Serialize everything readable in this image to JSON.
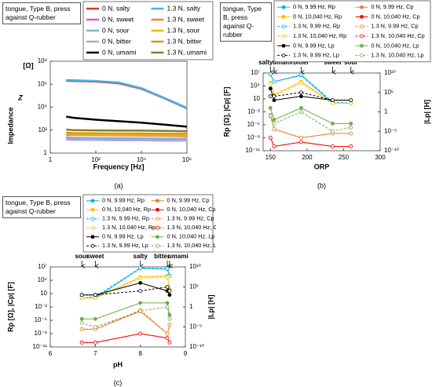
{
  "chart_data": [
    {
      "type": "line",
      "title": "tongue, Type B, press against Q-rubber",
      "caption": "(a)",
      "xlabel": "Frequency  [Hz]",
      "ylabel": "Impedance",
      "ylabel_symbol": "Z",
      "yunit": "[Ω]",
      "xlog": true,
      "ylog": true,
      "markers": false,
      "xlim": [
        1,
        1000000
      ],
      "xticks": [
        1,
        {
          "value": 100,
          "label": "10²"
        },
        {
          "value": 10000,
          "label": "10⁴"
        },
        {
          "value": 1000000,
          "label": "10⁶"
        }
      ],
      "ylim": [
        1,
        100000000
      ],
      "yticks": [
        1,
        {
          "value": 100,
          "label": "10²"
        },
        {
          "value": 10000,
          "label": "10⁴"
        },
        {
          "value": 1000000,
          "label": "10⁶"
        },
        {
          "value": 100000000,
          "label": "10⁸"
        }
      ],
      "x": [
        5,
        10,
        100,
        1000,
        10000,
        100000,
        1000000
      ],
      "series": [
        {
          "name": "0 N, salty",
          "color": "#e8312b",
          "values": [
            2000000,
            1900000,
            1700000,
            1200000,
            400000,
            60000,
            8000
          ]
        },
        {
          "name": "1.3 N, salty",
          "color": "#3fb5e5",
          "values": [
            2300000,
            2200000,
            1900000,
            1400000,
            450000,
            65000,
            8500
          ]
        },
        {
          "name": "0 N, sweet",
          "color": "#e05bb5",
          "values": [
            20,
            20,
            19,
            19,
            18,
            17,
            16
          ]
        },
        {
          "name": "1.3 N, sweet",
          "color": "#f0833a",
          "values": [
            40,
            38,
            36,
            35,
            33,
            32,
            30
          ]
        },
        {
          "name": "0 N, sour",
          "color": "#7fb3e0",
          "values": [
            25,
            22,
            20,
            20,
            19,
            18,
            18
          ]
        },
        {
          "name": "1.3 N, sour",
          "color": "#f5b800",
          "values": [
            50,
            45,
            42,
            40,
            40,
            38,
            38
          ]
        },
        {
          "name": "0 N, bitter",
          "color": "#b6a5d6",
          "values": [
            15,
            14,
            14,
            13,
            13,
            12,
            12
          ]
        },
        {
          "name": "1.3 N, bitter",
          "color": "#d49a17",
          "values": [
            60,
            55,
            52,
            50,
            50,
            48,
            48
          ]
        },
        {
          "name": "0 N, umami",
          "color": "#000000",
          "values": [
            1500,
            1200,
            800,
            600,
            450,
            300,
            200
          ]
        },
        {
          "name": "1.3 N, umami",
          "color": "#8b7a2b",
          "values": [
            110,
            100,
            95,
            90,
            90,
            85,
            80
          ]
        }
      ]
    },
    {
      "type": "line",
      "title": "tongue, Type B, press against Q-rubber",
      "caption": "(b)",
      "xlabel": "ORP",
      "ylabel": "Rp [Ω],  |Cp|  [F]",
      "y2label": "|Lp|  [H]",
      "xlog": false,
      "ylog": true,
      "y2log": true,
      "markers": true,
      "xlim": [
        140,
        300
      ],
      "xticks": [
        150,
        200,
        250,
        300
      ],
      "ylim": [
        1e-11,
        10000000
      ],
      "yticks": [
        {
          "value": 1e-11,
          "label": "10⁻¹¹"
        },
        {
          "value": 1e-08,
          "label": "10⁻⁸"
        },
        {
          "value": 1e-05,
          "label": "10⁻⁵"
        },
        {
          "value": 0.01,
          "label": "10⁻²"
        },
        10,
        {
          "value": 10000,
          "label": "10⁴"
        },
        {
          "value": 10000000,
          "label": "10⁷"
        }
      ],
      "y2lim": [
        1e-10,
        10000000000
      ],
      "y2ticks": [
        {
          "value": 1e-10,
          "label": "10⁻¹⁰"
        },
        {
          "value": 1e-05,
          "label": "10⁻⁵"
        },
        1,
        {
          "value": 100000,
          "label": "10⁵"
        },
        {
          "value": 10000000000,
          "label": "10¹⁰"
        }
      ],
      "annotations": [
        {
          "text": "salty",
          "x": 150
        },
        {
          "text": "umami",
          "x": 155
        },
        {
          "text": "bitter",
          "x": 192
        },
        {
          "text": "sweet",
          "x": 235
        },
        {
          "text": "sour",
          "x": 260
        }
      ],
      "x": [
        150,
        155,
        192,
        235,
        260
      ],
      "series": [
        {
          "name": "0 N, 9.99 Hz, Rp",
          "color": "#00b0f0",
          "dash": false,
          "values": [
            5000000,
            100000,
            3000000,
            1,
            1
          ]
        },
        {
          "name": "0 N, 9.99 Hz, Cp",
          "color": "#ed7d31",
          "dash": false,
          "values": [
            0.001,
            1e-06,
            1e-08,
            1e-07,
            1e-07
          ]
        },
        {
          "name": "0 N, 10,040 Hz, Rp",
          "color": "#ffc000",
          "dash": false,
          "values": [
            50000,
            100,
            100000,
            1,
            1
          ]
        },
        {
          "name": "0 N, 10,040 Hz, Cp",
          "color": "#ff0000",
          "dash": false,
          "values": [
            1e-08,
            1e-10,
            1e-09,
            1e-10,
            1e-10
          ]
        },
        {
          "name": "1.3 N, 9.99 Hz, Rp",
          "color": "#00b0f0",
          "dash": true,
          "values": [
            6000000,
            100000,
            4000000,
            2,
            1
          ]
        },
        {
          "name": "1.3 N, 9.99 Hz, Cp",
          "color": "#ed7d31",
          "dash": true,
          "values": [
            0.002,
            1e-06,
            1e-08,
            1e-07,
            1e-07
          ]
        },
        {
          "name": "1.3 N, 10,040 Hz, Rp",
          "color": "#ffc000",
          "dash": true,
          "values": [
            30000,
            50,
            50000,
            1,
            1
          ]
        },
        {
          "name": "1.3 N, 10,040 Hz, Cp",
          "color": "#ff0000",
          "dash": true,
          "values": [
            1e-08,
            1e-10,
            1e-09,
            1e-10,
            1e-10
          ]
        },
        {
          "name": "0 N, 9.99 Hz, Lp",
          "color": "#000000",
          "dash": false,
          "axis": "y2",
          "values": [
            1000000,
            1000,
            10000,
            1000,
            1000
          ]
        },
        {
          "name": "0 N, 10,040 Hz, Lp",
          "color": "#70ad47",
          "dash": false,
          "axis": "y2",
          "values": [
            10,
            0.01,
            10,
            0.001,
            0.001
          ]
        },
        {
          "name": "1.3 N, 9.99 Hz, Lp",
          "color": "#000000",
          "dash": true,
          "axis": "y2",
          "values": [
            10000,
            10000,
            100000,
            1000,
            1000
          ]
        },
        {
          "name": "1.3 N, 10,040 Hz, Lp",
          "color": "#70ad47",
          "dash": true,
          "axis": "y2",
          "values": [
            0.1,
            0.001,
            1,
            1e-05,
            0.0001
          ]
        }
      ]
    },
    {
      "type": "line",
      "title": "tongue, Type B, press against Q-rubber",
      "caption": "(c)",
      "xlabel": "pH",
      "ylabel": "Rp [Ω],  |Cp|  [F]",
      "y2label": "|Lp|  [H]",
      "xlog": false,
      "ylog": true,
      "y2log": true,
      "markers": true,
      "xlim": [
        6,
        9
      ],
      "xticks": [
        6,
        7,
        8,
        9
      ],
      "ylim": [
        1e-11,
        10000000
      ],
      "yticks": [
        {
          "value": 1e-11,
          "label": "10⁻¹¹"
        },
        {
          "value": 1e-08,
          "label": "10⁻⁸"
        },
        {
          "value": 1e-05,
          "label": "10⁻⁵"
        },
        {
          "value": 0.01,
          "label": "10⁻²"
        },
        10,
        {
          "value": 10000,
          "label": "10⁴"
        },
        {
          "value": 10000000,
          "label": "10⁷"
        }
      ],
      "y2lim": [
        1e-10,
        10000000000
      ],
      "y2ticks": [
        {
          "value": 1e-10,
          "label": "10⁻¹⁰"
        },
        {
          "value": 1e-05,
          "label": "10⁻⁵"
        },
        1,
        {
          "value": 100000,
          "label": "10⁵"
        },
        {
          "value": 10000000000,
          "label": "10¹⁰"
        }
      ],
      "annotations": [
        {
          "text": "sour",
          "x": 6.7
        },
        {
          "text": "sweet",
          "x": 7.0
        },
        {
          "text": "salty",
          "x": 8.0
        },
        {
          "text": "bitter",
          "x": 8.6
        },
        {
          "text": "umami",
          "x": 8.65
        }
      ],
      "x": [
        6.7,
        7.0,
        8.0,
        8.6,
        8.65
      ],
      "series": [
        {
          "name": "0 N, 9.99 Hz, Rp",
          "color": "#00b0f0",
          "dash": false,
          "values": [
            1,
            1,
            5000000,
            3000000,
            100000
          ]
        },
        {
          "name": "0 N, 9.99 Hz, Cp",
          "color": "#ed7d31",
          "dash": false,
          "values": [
            1e-07,
            1e-07,
            0.001,
            1e-08,
            1e-06
          ]
        },
        {
          "name": "0 N, 10,040 Hz, Rp",
          "color": "#ffc000",
          "dash": false,
          "values": [
            1,
            1,
            50000,
            100000,
            100
          ]
        },
        {
          "name": "0 N, 10,040 Hz, Cp",
          "color": "#ff0000",
          "dash": false,
          "values": [
            1e-10,
            1e-10,
            1e-08,
            1e-09,
            1e-10
          ]
        },
        {
          "name": "1.3 N, 9.99 Hz, Rp",
          "color": "#00b0f0",
          "dash": true,
          "values": [
            1,
            2,
            6000000,
            4000000,
            100000
          ]
        },
        {
          "name": "1.3 N, 9.99 Hz, Cp",
          "color": "#ed7d31",
          "dash": true,
          "values": [
            1e-07,
            1e-07,
            0.002,
            1e-08,
            1e-06
          ]
        },
        {
          "name": "1.3 N, 10,040 Hz, Rp",
          "color": "#ffc000",
          "dash": true,
          "values": [
            1,
            1,
            30000,
            50000,
            50
          ]
        },
        {
          "name": "1.3 N, 10,040 Hz, Cp",
          "color": "#ff0000",
          "dash": true,
          "values": [
            1e-10,
            1e-10,
            1e-08,
            1e-09,
            1e-10
          ]
        },
        {
          "name": "0 N, 9.99 Hz, Lp",
          "color": "#000000",
          "dash": false,
          "axis": "y2",
          "values": [
            1000,
            1000,
            1000000,
            10000,
            1000
          ]
        },
        {
          "name": "0 N, 10,040 Hz, Lp",
          "color": "#70ad47",
          "dash": false,
          "axis": "y2",
          "values": [
            0.001,
            0.001,
            10,
            10,
            0.01
          ]
        },
        {
          "name": "1.3 N, 9.99 Hz, Lp",
          "color": "#000000",
          "dash": true,
          "axis": "y2",
          "values": [
            1000,
            1000,
            10000,
            100000,
            10000
          ]
        },
        {
          "name": "1.3 N, 10,040 Hz, Lp",
          "color": "#70ad47",
          "dash": true,
          "axis": "y2",
          "values": [
            0.0001,
            1e-05,
            0.1,
            1,
            0.001
          ]
        }
      ]
    }
  ]
}
